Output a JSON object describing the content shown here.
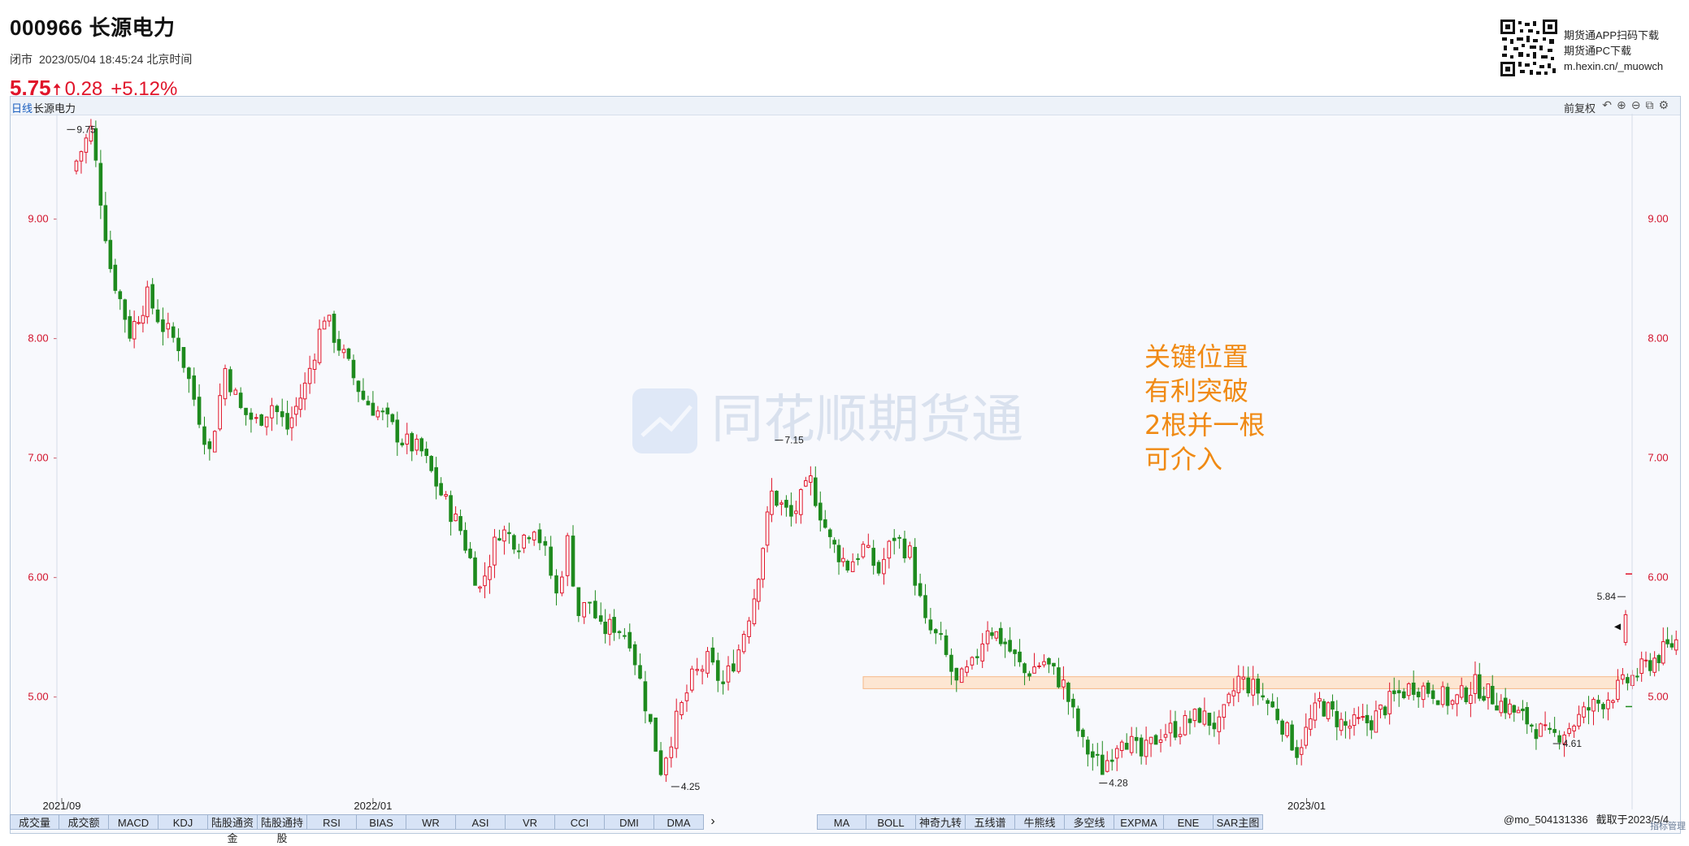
{
  "header": {
    "title": "000966 长源电力",
    "status": "闭市",
    "datetime": "2023/05/04 18:45:24 北京时间",
    "price": "5.75",
    "arrow": "🠅",
    "change": "0.28",
    "change_pct": "+5.12%"
  },
  "promo": {
    "line1": "期货通APP扫码下载",
    "line2": "期货通PC下载",
    "line3": "m.hexin.cn/_muowch"
  },
  "toolbar": {
    "period": "日线",
    "stock_name": "长源电力",
    "adjust": "前复权",
    "tools": [
      "↶",
      "⊕",
      "⊖",
      "⧉",
      "⚙"
    ]
  },
  "colors": {
    "up": "#e0142a",
    "down": "#1e8a1e",
    "axis_label": "#d2122b",
    "annotation": "#f08a14",
    "zone_fill": "#fde6d2",
    "zone_stroke": "#f5b887"
  },
  "annotation": [
    "关键位置",
    "有利突破",
    "2根并一根",
    "可介入"
  ],
  "watermark": "同花顺期货通",
  "tabs_left": [
    "成交量",
    "成交额",
    "MACD",
    "KDJ",
    "陆股通资金",
    "陆股通持股",
    "RSI",
    "BIAS",
    "WR",
    "ASI",
    "VR",
    "CCI",
    "DMI",
    "DMA"
  ],
  "tab_arrow": "›",
  "tabs_right": [
    "MA",
    "BOLL",
    "神奇九转",
    "五线谱",
    "牛熊线",
    "多空线",
    "EXPMA",
    "ENE",
    "SAR主图"
  ],
  "footer": {
    "user": "@mo_504131336",
    "capture": "截取于2023/5/4",
    "corner": "指标管理"
  },
  "chart_data": {
    "type": "candlestick",
    "title": "000966 长源电力 日线",
    "y_ticks": [
      5.0,
      6.0,
      7.0,
      8.0,
      9.0
    ],
    "y_tick_labels": [
      "5.00",
      "6.00",
      "7.00",
      "8.00",
      "9.00"
    ],
    "ylim": [
      4.1,
      9.8
    ],
    "x_tick_labels": [
      "2021/09",
      "2022/01",
      "2023/01"
    ],
    "date_range": [
      "2021/09",
      "2023/05/04"
    ],
    "grid": false,
    "markers": [
      {
        "label": "9.75",
        "value": 9.75,
        "date": "2021/09"
      },
      {
        "label": "4.25",
        "value": 4.25,
        "date": "2022/04"
      },
      {
        "label": "7.15",
        "value": 7.15,
        "date": "2022/06"
      },
      {
        "label": "4.28",
        "value": 4.28,
        "date": "2022/10"
      },
      {
        "label": "4.61",
        "value": 4.61,
        "date": "2023/04"
      },
      {
        "label": "5.84",
        "value": 5.84,
        "date": "2023/05/04"
      }
    ],
    "resistance_zone": {
      "low": 5.07,
      "high": 5.17
    },
    "last_close": 5.75,
    "close_path": [
      [
        "2021/09",
        9.4
      ],
      [
        "2021/09",
        9.75
      ],
      [
        "2021/09",
        8.6
      ],
      [
        "2021/09",
        8.05
      ],
      [
        "2021/10",
        8.35
      ],
      [
        "2021/10",
        8.1
      ],
      [
        "2021/10",
        7.95
      ],
      [
        "2021/10",
        7.5
      ],
      [
        "2021/10",
        7.05
      ],
      [
        "2021/11",
        7.75
      ],
      [
        "2021/11",
        7.4
      ],
      [
        "2021/11",
        7.3
      ],
      [
        "2021/11",
        7.45
      ],
      [
        "2021/11",
        7.25
      ],
      [
        "2021/12",
        7.6
      ],
      [
        "2021/12",
        8.2
      ],
      [
        "2021/12",
        7.85
      ],
      [
        "2021/12",
        7.5
      ],
      [
        "2022/01",
        7.35
      ],
      [
        "2022/01",
        7.15
      ],
      [
        "2022/01",
        7.05
      ],
      [
        "2022/01",
        6.7
      ],
      [
        "2022/02",
        6.4
      ],
      [
        "2022/02",
        5.9
      ],
      [
        "2022/02",
        6.4
      ],
      [
        "2022/02",
        6.3
      ],
      [
        "2022/03",
        6.45
      ],
      [
        "2022/03",
        6.2
      ],
      [
        "2022/03",
        5.85
      ],
      [
        "2022/03",
        6.3
      ],
      [
        "2022/03",
        5.7
      ],
      [
        "2022/03",
        5.8
      ],
      [
        "2022/03",
        5.55
      ],
      [
        "2022/04",
        5.6
      ],
      [
        "2022/04",
        5.5
      ],
      [
        "2022/04",
        4.95
      ],
      [
        "2022/04",
        4.4
      ],
      [
        "2022/04",
        4.8
      ],
      [
        "2022/05",
        5.15
      ],
      [
        "2022/05",
        5.3
      ],
      [
        "2022/05",
        5.1
      ],
      [
        "2022/05",
        5.4
      ],
      [
        "2022/05",
        5.85
      ],
      [
        "2022/06",
        6.7
      ],
      [
        "2022/06",
        6.5
      ],
      [
        "2022/06",
        6.8
      ],
      [
        "2022/06",
        6.3
      ],
      [
        "2022/07",
        6.1
      ],
      [
        "2022/07",
        6.25
      ],
      [
        "2022/07",
        6.05
      ],
      [
        "2022/07",
        6.35
      ],
      [
        "2022/07",
        6.2
      ],
      [
        "2022/08",
        5.6
      ],
      [
        "2022/08",
        5.45
      ],
      [
        "2022/08",
        5.1
      ],
      [
        "2022/08",
        5.25
      ],
      [
        "2022/08",
        5.6
      ],
      [
        "2022/09",
        5.45
      ],
      [
        "2022/09",
        5.2
      ],
      [
        "2022/09",
        5.3
      ],
      [
        "2022/09",
        5.1
      ],
      [
        "2022/10",
        4.6
      ],
      [
        "2022/10",
        4.4
      ],
      [
        "2022/10",
        4.7
      ],
      [
        "2022/10",
        4.5
      ],
      [
        "2022/11",
        4.7
      ],
      [
        "2022/11",
        4.75
      ],
      [
        "2022/11",
        4.85
      ],
      [
        "2022/11",
        4.75
      ],
      [
        "2022/12",
        5.15
      ],
      [
        "2022/12",
        5.05
      ],
      [
        "2022/12",
        4.85
      ],
      [
        "2022/12",
        4.55
      ],
      [
        "2023/01",
        4.95
      ],
      [
        "2023/01",
        4.75
      ],
      [
        "2023/01",
        4.8
      ],
      [
        "2023/02",
        5.0
      ],
      [
        "2023/02",
        5.1
      ],
      [
        "2023/02",
        5.05
      ],
      [
        "2023/02",
        4.95
      ],
      [
        "2023/03",
        5.1
      ],
      [
        "2023/03",
        4.95
      ],
      [
        "2023/03",
        4.8
      ],
      [
        "2023/04",
        4.65
      ],
      [
        "2023/04",
        4.75
      ],
      [
        "2023/04",
        4.9
      ],
      [
        "2023/04",
        5.0
      ],
      [
        "2023/05",
        5.2
      ],
      [
        "2023/05",
        5.47
      ],
      [
        "2023/05/04",
        5.75
      ]
    ]
  }
}
